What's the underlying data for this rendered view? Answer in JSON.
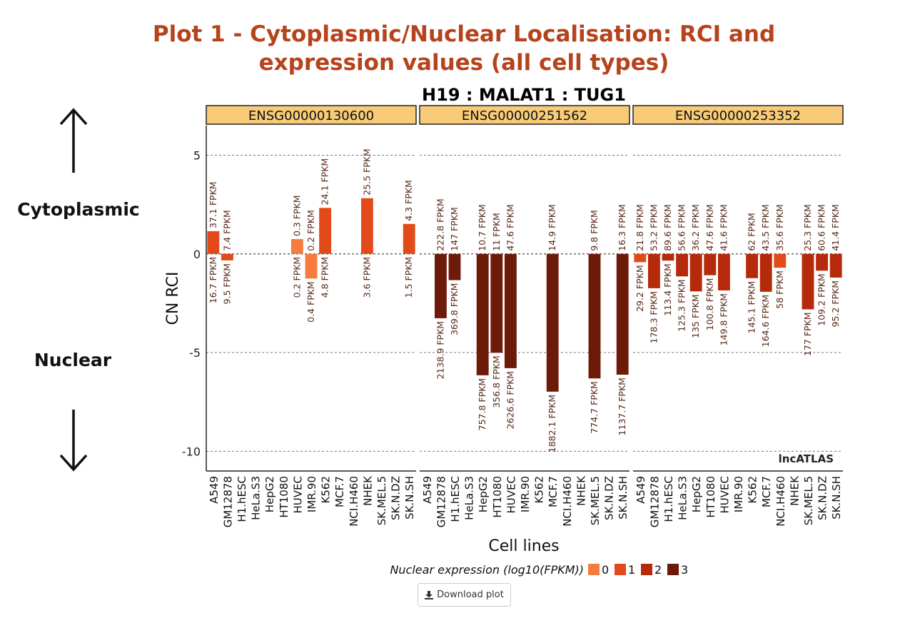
{
  "page": {
    "title_line1": "Plot 1 - Cytoplasmic/Nuclear Localisation: RCI and",
    "title_line2": "expression values (all cell types)",
    "cytoplasmic_label": "Cytoplasmic",
    "nuclear_label": "Nuclear",
    "download_label": "Download plot",
    "download_icon": "download-icon"
  },
  "colors": {
    "title": "#b5431c",
    "strip": "#f7cb78",
    "level": [
      "#f57c3c",
      "#e34a1a",
      "#b52a0a",
      "#6e1a08"
    ],
    "value_text": "#5a2a1a"
  },
  "chart_data": {
    "type": "bar",
    "title": "H19 : MALAT1 : TUG1",
    "xlabel": "Cell lines",
    "ylabel": "CN RCI",
    "ylim": [
      -11,
      6.5
    ],
    "yticks": [
      5,
      0,
      -5,
      -10
    ],
    "watermark": "lncATLAS",
    "categories": [
      "A549",
      "GM12878",
      "H1.hESC",
      "HeLa.S3",
      "HepG2",
      "HT1080",
      "HUVEC",
      "IMR.90",
      "K562",
      "MCF.7",
      "NCI.H460",
      "NHEK",
      "SK.MEL.5",
      "SK.N.DZ",
      "SK.N.SH"
    ],
    "legend": {
      "title": "Nuclear expression (log10(FPKM))",
      "levels": [
        "0",
        "1",
        "2",
        "3"
      ],
      "position": "bottom"
    },
    "panels": [
      {
        "name": "ENSG00000130600",
        "bars": [
          {
            "cell": "A549",
            "rci": 1.15,
            "cyto": "37.1 FPKM",
            "nuc": "16.7 FPKM",
            "level": 1
          },
          {
            "cell": "GM12878",
            "rci": -0.33,
            "cyto": "7.4 FPKM",
            "nuc": "9.5 FPKM",
            "level": 1
          },
          {
            "cell": "HUVEC",
            "rci": 0.75,
            "cyto": "0.3 FPKM",
            "nuc": "0.2 FPKM",
            "level": 0
          },
          {
            "cell": "IMR.90",
            "rci": -1.25,
            "cyto": "0.2 FPKM",
            "nuc": "0.4 FPKM",
            "level": 0
          },
          {
            "cell": "K562",
            "rci": 2.33,
            "cyto": "24.1 FPKM",
            "nuc": "4.8 FPKM",
            "level": 1
          },
          {
            "cell": "NHEK",
            "rci": 2.82,
            "cyto": "25.5 FPKM",
            "nuc": "3.6 FPKM",
            "level": 1
          },
          {
            "cell": "SK.N.SH",
            "rci": 1.52,
            "cyto": "4.3 FPKM",
            "nuc": "1.5 FPKM",
            "level": 1
          }
        ]
      },
      {
        "name": "ENSG00000251562",
        "bars": [
          {
            "cell": "GM12878",
            "rci": -3.26,
            "cyto": "222.8 FPKM",
            "nuc": "2138.9 FPKM",
            "level": 3
          },
          {
            "cell": "H1.hESC",
            "rci": -1.33,
            "cyto": "147 FPKM",
            "nuc": "369.8 FPKM",
            "level": 3
          },
          {
            "cell": "HepG2",
            "rci": -6.15,
            "cyto": "10.7 FPKM",
            "nuc": "757.8 FPKM",
            "level": 3
          },
          {
            "cell": "HT1080",
            "rci": -5.01,
            "cyto": "11 FPKM",
            "nuc": "356.8 FPKM",
            "level": 3
          },
          {
            "cell": "HUVEC",
            "rci": -5.79,
            "cyto": "47.6 FPKM",
            "nuc": "2626.6 FPKM",
            "level": 3
          },
          {
            "cell": "MCF.7",
            "rci": -6.98,
            "cyto": "14.9 FPKM",
            "nuc": "1882.1 FPKM",
            "level": 3
          },
          {
            "cell": "SK.MEL.5",
            "rci": -6.31,
            "cyto": "9.8 FPKM",
            "nuc": "774.7 FPKM",
            "level": 3
          },
          {
            "cell": "SK.N.SH",
            "rci": -6.12,
            "cyto": "16.3 FPKM",
            "nuc": "1137.7 FPKM",
            "level": 3
          }
        ]
      },
      {
        "name": "ENSG00000253352",
        "bars": [
          {
            "cell": "A549",
            "rci": -0.42,
            "cyto": "21.8 FPKM",
            "nuc": "29.2 FPKM",
            "level": 1
          },
          {
            "cell": "GM12878",
            "rci": -1.74,
            "cyto": "53.2 FPKM",
            "nuc": "178.3 FPKM",
            "level": 2
          },
          {
            "cell": "H1.hESC",
            "rci": -0.34,
            "cyto": "89.6 FPKM",
            "nuc": "113.4 FPKM",
            "level": 2
          },
          {
            "cell": "HeLa.S3",
            "rci": -1.14,
            "cyto": "56.6 FPKM",
            "nuc": "125.3 FPKM",
            "level": 2
          },
          {
            "cell": "HepG2",
            "rci": -1.9,
            "cyto": "36.2 FPKM",
            "nuc": "135 FPKM",
            "level": 2
          },
          {
            "cell": "HT1080",
            "rci": -1.08,
            "cyto": "47.6 FPKM",
            "nuc": "100.8 FPKM",
            "level": 2
          },
          {
            "cell": "HUVEC",
            "rci": -1.85,
            "cyto": "41.6 FPKM",
            "nuc": "149.8 FPKM",
            "level": 2
          },
          {
            "cell": "K562",
            "rci": -1.23,
            "cyto": "62 FPKM",
            "nuc": "145.1 FPKM",
            "level": 2
          },
          {
            "cell": "MCF.7",
            "rci": -1.92,
            "cyto": "43.5 FPKM",
            "nuc": "164.6 FPKM",
            "level": 2
          },
          {
            "cell": "NCI.H460",
            "rci": -0.7,
            "cyto": "35.6 FPKM",
            "nuc": "58 FPKM",
            "level": 1
          },
          {
            "cell": "SK.MEL.5",
            "rci": -2.81,
            "cyto": "25.3 FPKM",
            "nuc": "177 FPKM",
            "level": 2
          },
          {
            "cell": "SK.N.DZ",
            "rci": -0.85,
            "cyto": "60.6 FPKM",
            "nuc": "109.2 FPKM",
            "level": 2
          },
          {
            "cell": "SK.N.SH",
            "rci": -1.2,
            "cyto": "41.4 FPKM",
            "nuc": "95.2 FPKM",
            "level": 2
          }
        ]
      }
    ]
  }
}
